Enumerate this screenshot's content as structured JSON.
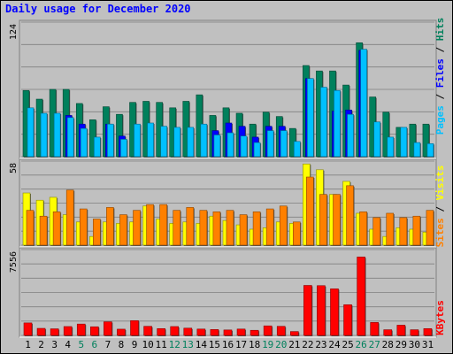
{
  "title": "Daily usage for December 2020",
  "colors": {
    "hits": "#00805c",
    "files": "#0000ff",
    "pages": "#00c0ff",
    "visits": "#ffff00",
    "sites": "#ff8000",
    "kbytes": "#ff0000",
    "weekday_label": "#000000",
    "weekend_label": "#00805c"
  },
  "legend": {
    "pages": "Pages",
    "files": "Files",
    "hits": "Hits",
    "sites": "Sites",
    "visits": "Visits",
    "kbytes": "KBytes",
    "sep": " / "
  },
  "axis_max": {
    "hits": "124",
    "visits": "58",
    "kbytes": "7556"
  },
  "chart_data": {
    "type": "bar",
    "categories": [
      "1",
      "2",
      "3",
      "4",
      "5",
      "6",
      "7",
      "8",
      "9",
      "10",
      "11",
      "12",
      "13",
      "14",
      "15",
      "16",
      "17",
      "18",
      "19",
      "20",
      "21",
      "22",
      "23",
      "24",
      "25",
      "26",
      "27",
      "28",
      "29",
      "30",
      "31"
    ],
    "weekend_days": [
      "5",
      "6",
      "12",
      "13",
      "19",
      "20",
      "26",
      "27"
    ],
    "panels": [
      {
        "ylim": [
          0,
          124
        ],
        "label_max": "124",
        "series": [
          {
            "name": "Hits",
            "values": [
              61,
              53,
              62,
              62,
              49,
              34,
              46,
              39,
              50,
              51,
              50,
              45,
              51,
              57,
              38,
              45,
              40,
              30,
              41,
              37,
              26,
              84,
              79,
              79,
              66,
              105,
              55,
              41,
              27,
              30,
              30
            ]
          },
          {
            "name": "Files",
            "values": [
              0,
              0,
              0,
              38,
              30,
              0,
              30,
              19,
              0,
              0,
              0,
              0,
              0,
              0,
              24,
              31,
              28,
              18,
              28,
              28,
              0,
              72,
              0,
              42,
              43,
              98,
              0,
              0,
              0,
              0,
              0
            ]
          },
          {
            "name": "Pages",
            "values": [
              45,
              40,
              40,
              36,
              26,
              18,
              30,
              16,
              30,
              31,
              28,
              27,
              27,
              30,
              20,
              22,
              19,
              13,
              24,
              24,
              14,
              72,
              64,
              61,
              39,
              99,
              32,
              18,
              27,
              13,
              12
            ]
          }
        ]
      },
      {
        "ylim": [
          0,
          58
        ],
        "label_max": "58",
        "series": [
          {
            "name": "Visits",
            "values": [
              36,
              31,
              33,
              21,
              16,
              6,
              16,
              15,
              16,
              27,
              18,
              15,
              16,
              15,
              20,
              17,
              14,
              11,
              12,
              16,
              15,
              56,
              52,
              35,
              44,
              22,
              11,
              6,
              12,
              11,
              9
            ]
          },
          {
            "name": "Sites",
            "values": [
              24,
              20,
              23,
              38,
              25,
              18,
              26,
              21,
              24,
              28,
              28,
              24,
              26,
              24,
              23,
              24,
              21,
              23,
              25,
              27,
              16,
              47,
              35,
              35,
              41,
              23,
              19,
              22,
              19,
              20,
              24
            ]
          }
        ]
      },
      {
        "ylim": [
          0,
          7556
        ],
        "label_max": "7556",
        "series": [
          {
            "name": "KBytes",
            "values": [
              1100,
              620,
              580,
              780,
              1000,
              760,
              1200,
              550,
              1300,
              800,
              600,
              780,
              640,
              560,
              520,
              480,
              560,
              450,
              840,
              800,
              340,
              4400,
              4380,
              4100,
              2700,
              6900,
              1140,
              500,
              900,
              500,
              600
            ]
          }
        ]
      }
    ]
  }
}
